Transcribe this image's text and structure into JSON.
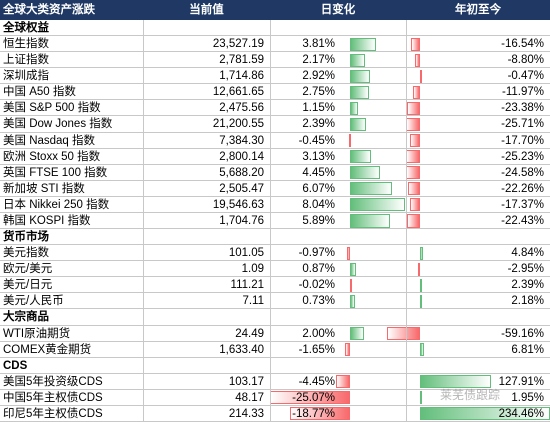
{
  "header": {
    "title": "全球大类资产涨跌",
    "columns": [
      "当前值",
      "日变化",
      "年初至今"
    ]
  },
  "sections": [
    {
      "title": "全球权益",
      "rows": [
        [
          "恒生指数",
          "23,527.19",
          "3.81%",
          "-16.54%"
        ],
        [
          "上证指数",
          "2,781.59",
          "2.17%",
          "-8.80%"
        ],
        [
          "深圳成指",
          "1,714.86",
          "2.92%",
          "-0.47%"
        ],
        [
          "中国 A50 指数",
          "12,661.65",
          "2.75%",
          "-11.97%"
        ],
        [
          "美国 S&P 500 指数",
          "2,475.56",
          "1.15%",
          "-23.38%"
        ],
        [
          "美国 Dow Jones 指数",
          "21,200.55",
          "2.39%",
          "-25.71%"
        ],
        [
          "美国 Nasdaq 指数",
          "7,384.30",
          "-0.45%",
          "-17.70%"
        ],
        [
          "欧洲 Stoxx 50 指数",
          "2,800.14",
          "3.13%",
          "-25.23%"
        ],
        [
          "英国 FTSE 100 指数",
          "5,688.20",
          "4.45%",
          "-24.58%"
        ],
        [
          "新加坡 STI 指数",
          "2,505.47",
          "6.07%",
          "-22.26%"
        ],
        [
          "日本 Nikkei 250 指数",
          "19,546.63",
          "8.04%",
          "-17.37%"
        ],
        [
          "韩国 KOSPI 指数",
          "1,704.76",
          "5.89%",
          "-22.43%"
        ]
      ]
    },
    {
      "title": "货币市场",
      "rows": [
        [
          "美元指数",
          "101.05",
          "-0.97%",
          "4.84%"
        ],
        [
          "欧元/美元",
          "1.09",
          "0.87%",
          "-2.95%"
        ],
        [
          "美元/日元",
          "111.21",
          "-0.02%",
          "2.39%"
        ],
        [
          "美元/人民币",
          "7.11",
          "0.73%",
          "2.18%"
        ]
      ]
    },
    {
      "title": "大宗商品",
      "rows": [
        [
          "WTI原油期货",
          "24.49",
          "2.00%",
          "-59.16%"
        ],
        [
          "COMEX黄金期货",
          "1,633.40",
          "-1.65%",
          "6.81%"
        ]
      ]
    },
    {
      "title": "CDS",
      "rows": [
        [
          "美国5年投资级CDS",
          "103.17",
          "-4.45%",
          "127.91%"
        ],
        [
          "中国5年主权债CDS",
          "48.17",
          "-25.07%",
          "1.95%"
        ],
        [
          "印尼5年主权债CDS",
          "214.33",
          "-18.77%",
          "234.46%"
        ]
      ]
    }
  ],
  "watermark": "莱芜债跟踪"
}
